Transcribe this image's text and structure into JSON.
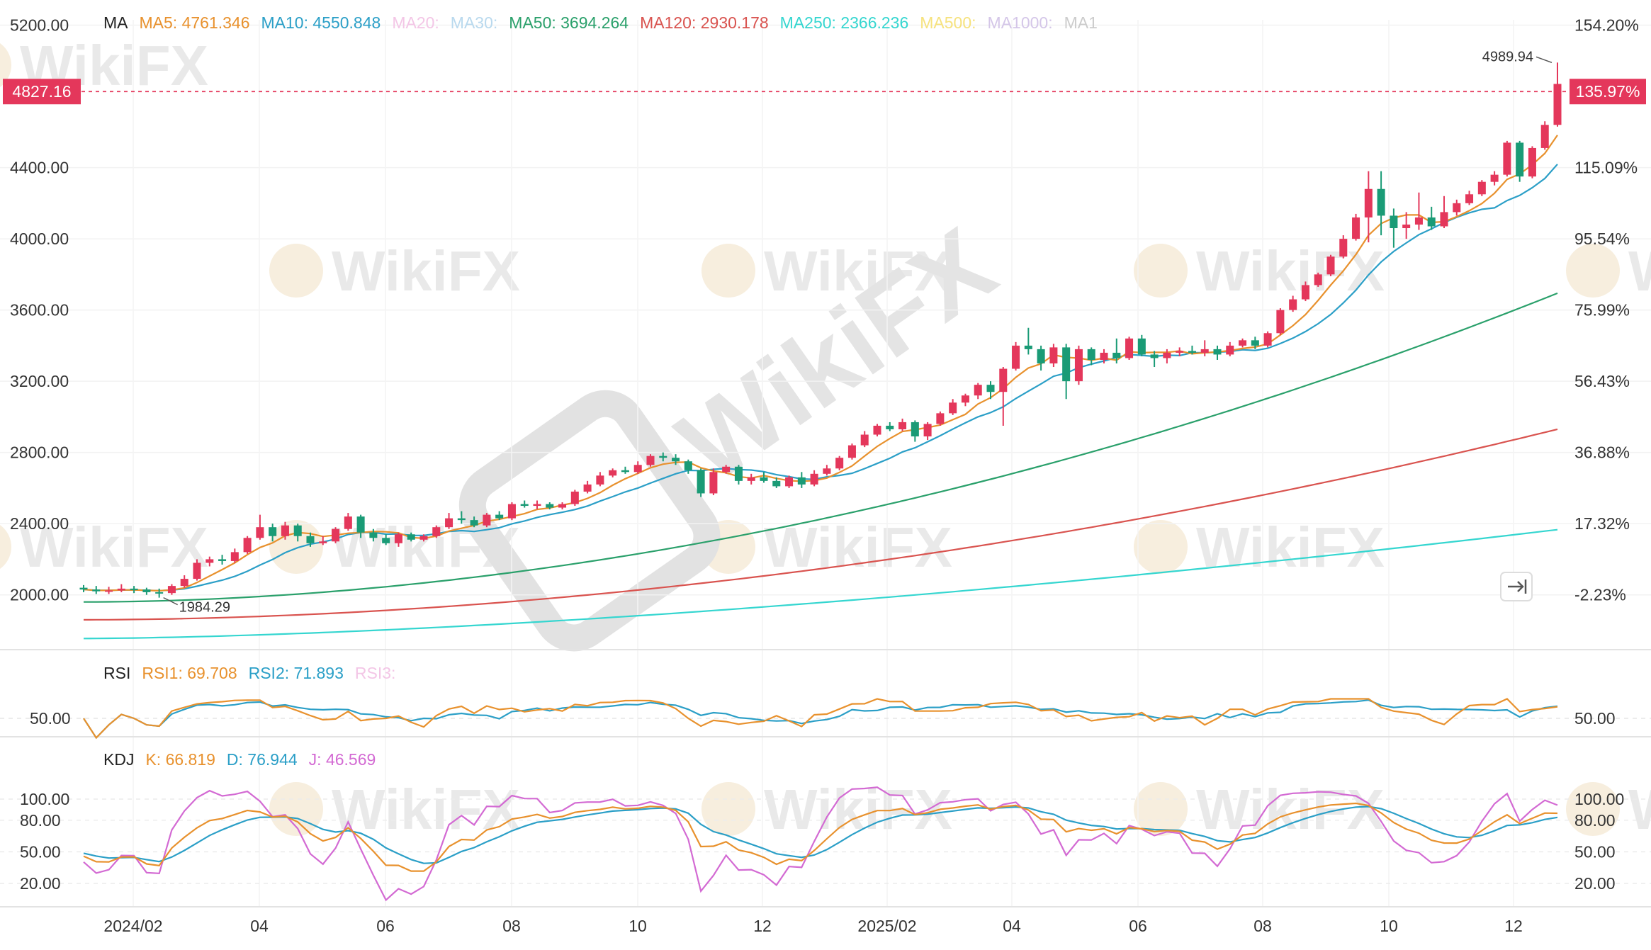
{
  "colors": {
    "up": "#e4375b",
    "down": "#1a9b76",
    "ma5": "#e8912d",
    "ma10": "#2b9fc7",
    "ma50": "#2aa06b",
    "ma120": "#d9534f",
    "ma250": "#35d6d0",
    "k": "#e8912d",
    "d": "#2b9fc7",
    "j": "#d36ad3",
    "rsi1": "#e8912d",
    "rsi2": "#2b9fc7",
    "price_marker": "#e4375b"
  },
  "watermark": {
    "text": "WikiFX"
  },
  "toolbar": {
    "collapse_icon": "arrow-to-right-icon"
  },
  "legend_ma": {
    "title": "MA",
    "items": [
      {
        "text": "MA5: 4761.346",
        "color": "#e8912d"
      },
      {
        "text": "MA10: 4550.848",
        "color": "#2b9fc7"
      },
      {
        "text": "MA20:",
        "color": "#f3c6e6"
      },
      {
        "text": "MA30:",
        "color": "#b9d9ee"
      },
      {
        "text": "MA50: 3694.264",
        "color": "#2aa06b"
      },
      {
        "text": "MA120: 2930.178",
        "color": "#d9534f"
      },
      {
        "text": "MA250: 2366.236",
        "color": "#35d6d0"
      },
      {
        "text": "MA500:",
        "color": "#f6e27d"
      },
      {
        "text": "MA1000:",
        "color": "#d4c6e8"
      },
      {
        "text": "MA1",
        "color": "#cccccc"
      }
    ]
  },
  "legend_rsi": {
    "title": "RSI",
    "items": [
      {
        "text": "RSI1: 69.708",
        "color": "#e8912d"
      },
      {
        "text": "RSI2: 71.893",
        "color": "#2b9fc7"
      },
      {
        "text": "RSI3:",
        "color": "#f3c6e6"
      }
    ]
  },
  "legend_kdj": {
    "title": "KDJ",
    "items": [
      {
        "text": "K: 66.819",
        "color": "#e8912d"
      },
      {
        "text": "D: 76.944",
        "color": "#2b9fc7"
      },
      {
        "text": "J: 46.569",
        "color": "#d36ad3"
      }
    ]
  },
  "chart_data": {
    "type": "candlestick",
    "price_axis": {
      "ylim": [
        1760,
        5230
      ],
      "left_ticks": [
        "5200.00",
        "4400.00",
        "4000.00",
        "3600.00",
        "3200.00",
        "2800.00",
        "2400.00",
        "2000.00"
      ],
      "right_ticks": [
        "154.20%",
        "115.09%",
        "95.54%",
        "75.99%",
        "56.43%",
        "36.88%",
        "17.32%",
        "-2.23%"
      ]
    },
    "current_price": {
      "label": "4827.16",
      "value": 4827.16,
      "pct_label": "135.97%"
    },
    "annotations": [
      {
        "text": "4989.94",
        "value": 4989.94
      },
      {
        "text": "1984.29",
        "value": 1984.29
      }
    ],
    "x_ticks": [
      "2024/02",
      "04",
      "06",
      "08",
      "10",
      "12",
      "2025/02",
      "04",
      "06",
      "08",
      "10",
      "12"
    ],
    "candles": [
      [
        2040,
        2030,
        2055,
        2015
      ],
      [
        2030,
        2020,
        2050,
        2005
      ],
      [
        2020,
        2025,
        2045,
        2005
      ],
      [
        2025,
        2035,
        2060,
        2015
      ],
      [
        2035,
        2030,
        2050,
        2010
      ],
      [
        2030,
        2015,
        2040,
        2000
      ],
      [
        2015,
        2010,
        2035,
        1984.29
      ],
      [
        2010,
        2050,
        2060,
        2000
      ],
      [
        2050,
        2090,
        2110,
        2040
      ],
      [
        2090,
        2180,
        2200,
        2080
      ],
      [
        2180,
        2200,
        2215,
        2160
      ],
      [
        2200,
        2190,
        2225,
        2170
      ],
      [
        2190,
        2240,
        2260,
        2180
      ],
      [
        2240,
        2320,
        2330,
        2230
      ],
      [
        2320,
        2380,
        2450,
        2310
      ],
      [
        2380,
        2330,
        2400,
        2300
      ],
      [
        2330,
        2390,
        2410,
        2310
      ],
      [
        2390,
        2330,
        2400,
        2300
      ],
      [
        2330,
        2290,
        2350,
        2270
      ],
      [
        2290,
        2300,
        2330,
        2280
      ],
      [
        2300,
        2370,
        2380,
        2290
      ],
      [
        2370,
        2440,
        2460,
        2360
      ],
      [
        2440,
        2350,
        2450,
        2320
      ],
      [
        2350,
        2320,
        2370,
        2300
      ],
      [
        2320,
        2290,
        2340,
        2280
      ],
      [
        2290,
        2340,
        2350,
        2270
      ],
      [
        2340,
        2310,
        2350,
        2300
      ],
      [
        2310,
        2330,
        2340,
        2300
      ],
      [
        2330,
        2380,
        2390,
        2320
      ],
      [
        2380,
        2430,
        2460,
        2370
      ],
      [
        2430,
        2420,
        2470,
        2400
      ],
      [
        2420,
        2390,
        2440,
        2380
      ],
      [
        2390,
        2450,
        2460,
        2380
      ],
      [
        2450,
        2430,
        2470,
        2420
      ],
      [
        2430,
        2510,
        2520,
        2420
      ],
      [
        2510,
        2500,
        2530,
        2490
      ],
      [
        2500,
        2510,
        2530,
        2480
      ],
      [
        2510,
        2490,
        2520,
        2480
      ],
      [
        2490,
        2510,
        2520,
        2480
      ],
      [
        2510,
        2580,
        2590,
        2500
      ],
      [
        2580,
        2620,
        2640,
        2570
      ],
      [
        2620,
        2670,
        2690,
        2610
      ],
      [
        2670,
        2700,
        2710,
        2660
      ],
      [
        2700,
        2690,
        2720,
        2680
      ],
      [
        2690,
        2730,
        2750,
        2680
      ],
      [
        2730,
        2780,
        2790,
        2720
      ],
      [
        2780,
        2770,
        2800,
        2750
      ],
      [
        2770,
        2750,
        2790,
        2730
      ],
      [
        2750,
        2700,
        2760,
        2680
      ],
      [
        2700,
        2570,
        2710,
        2550
      ],
      [
        2570,
        2690,
        2710,
        2560
      ],
      [
        2690,
        2720,
        2730,
        2680
      ],
      [
        2720,
        2640,
        2730,
        2620
      ],
      [
        2640,
        2660,
        2680,
        2620
      ],
      [
        2660,
        2640,
        2690,
        2630
      ],
      [
        2640,
        2610,
        2660,
        2600
      ],
      [
        2610,
        2660,
        2670,
        2600
      ],
      [
        2660,
        2620,
        2690,
        2600
      ],
      [
        2620,
        2680,
        2700,
        2610
      ],
      [
        2680,
        2710,
        2730,
        2670
      ],
      [
        2710,
        2770,
        2780,
        2700
      ],
      [
        2770,
        2840,
        2850,
        2760
      ],
      [
        2840,
        2900,
        2920,
        2830
      ],
      [
        2900,
        2950,
        2960,
        2890
      ],
      [
        2950,
        2930,
        2970,
        2920
      ],
      [
        2930,
        2970,
        2990,
        2920
      ],
      [
        2970,
        2890,
        2980,
        2860
      ],
      [
        2890,
        2960,
        2970,
        2870
      ],
      [
        2960,
        3020,
        3030,
        2950
      ],
      [
        3020,
        3080,
        3100,
        3010
      ],
      [
        3080,
        3120,
        3130,
        3060
      ],
      [
        3120,
        3180,
        3190,
        3100
      ],
      [
        3180,
        3140,
        3200,
        3100
      ],
      [
        3140,
        3270,
        3280,
        2950
      ],
      [
        3270,
        3400,
        3420,
        3260
      ],
      [
        3400,
        3380,
        3500,
        3350
      ],
      [
        3380,
        3300,
        3400,
        3260
      ],
      [
        3300,
        3390,
        3410,
        3280
      ],
      [
        3390,
        3200,
        3410,
        3100
      ],
      [
        3200,
        3380,
        3400,
        3180
      ],
      [
        3380,
        3320,
        3390,
        3290
      ],
      [
        3320,
        3360,
        3380,
        3300
      ],
      [
        3360,
        3330,
        3440,
        3300
      ],
      [
        3330,
        3440,
        3450,
        3320
      ],
      [
        3440,
        3350,
        3460,
        3340
      ],
      [
        3350,
        3330,
        3370,
        3280
      ],
      [
        3330,
        3360,
        3380,
        3300
      ],
      [
        3360,
        3370,
        3390,
        3340
      ],
      [
        3370,
        3360,
        3400,
        3350
      ],
      [
        3360,
        3380,
        3430,
        3340
      ],
      [
        3380,
        3350,
        3400,
        3320
      ],
      [
        3350,
        3400,
        3420,
        3340
      ],
      [
        3400,
        3430,
        3440,
        3390
      ],
      [
        3430,
        3400,
        3450,
        3380
      ],
      [
        3400,
        3470,
        3480,
        3390
      ],
      [
        3470,
        3600,
        3610,
        3460
      ],
      [
        3600,
        3660,
        3680,
        3590
      ],
      [
        3660,
        3740,
        3760,
        3650
      ],
      [
        3740,
        3800,
        3810,
        3730
      ],
      [
        3800,
        3900,
        3910,
        3790
      ],
      [
        3900,
        4000,
        4020,
        3890
      ],
      [
        4000,
        4120,
        4140,
        3990
      ],
      [
        4120,
        4280,
        4380,
        3980
      ],
      [
        4280,
        4130,
        4380,
        4020
      ],
      [
        4130,
        4060,
        4170,
        3950
      ],
      [
        4060,
        4080,
        4150,
        4000
      ],
      [
        4080,
        4120,
        4260,
        4050
      ],
      [
        4120,
        4070,
        4180,
        4050
      ],
      [
        4070,
        4150,
        4240,
        4060
      ],
      [
        4150,
        4200,
        4220,
        4130
      ],
      [
        4200,
        4250,
        4270,
        4190
      ],
      [
        4250,
        4320,
        4330,
        4240
      ],
      [
        4320,
        4360,
        4380,
        4300
      ],
      [
        4360,
        4540,
        4550,
        4350
      ],
      [
        4540,
        4350,
        4550,
        4320
      ],
      [
        4350,
        4510,
        4520,
        4340
      ],
      [
        4510,
        4640,
        4660,
        4500
      ],
      [
        4640,
        4870,
        4990,
        4630
      ]
    ],
    "rsi_axis": {
      "ticks": [
        "50.00"
      ]
    },
    "kdj_axis": {
      "ticks": [
        "100.00",
        "80.00",
        "50.00",
        "20.00"
      ]
    }
  }
}
